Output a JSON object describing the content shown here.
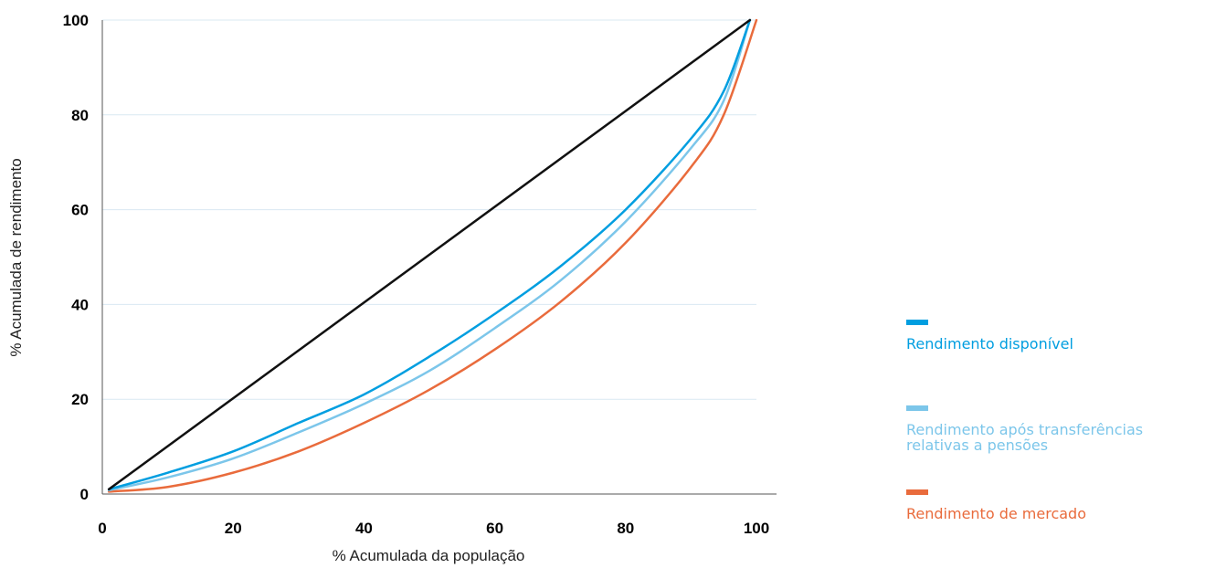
{
  "chart_data": {
    "type": "line",
    "title": "",
    "xlabel": "% Acumulada da população",
    "ylabel": "% Acumulada de rendimento",
    "xlim": [
      0,
      100
    ],
    "ylim": [
      0,
      100
    ],
    "x_ticks": [
      "0",
      "20",
      "40",
      "60",
      "80",
      "100"
    ],
    "y_ticks": [
      "0",
      "20",
      "40",
      "60",
      "80",
      "100"
    ],
    "grid": "horizontal",
    "legend_position": "right",
    "series": [
      {
        "name": "Rendimento disponível",
        "color": "#009ee0",
        "x": [
          1,
          10,
          20,
          30,
          40,
          50,
          60,
          70,
          80,
          90,
          95,
          99
        ],
        "y": [
          1,
          4.5,
          9,
          15,
          21,
          29,
          38,
          48,
          60,
          75,
          85,
          100
        ]
      },
      {
        "name": "Rendimento após transferências\nrelativas a pensões",
        "color": "#7cc6ea",
        "x": [
          1,
          10,
          20,
          30,
          40,
          50,
          60,
          70,
          80,
          90,
          95,
          99
        ],
        "y": [
          0.8,
          3.5,
          7.5,
          13,
          19,
          26,
          35,
          45,
          57.5,
          73,
          83,
          100
        ]
      },
      {
        "name": "Rendimento de mercado",
        "color": "#e96b3c",
        "x": [
          1,
          10,
          20,
          30,
          40,
          50,
          60,
          70,
          80,
          90,
          95,
          100
        ],
        "y": [
          0.5,
          1.5,
          4.5,
          9,
          15,
          22,
          30.5,
          40.5,
          53,
          69,
          80,
          100
        ]
      },
      {
        "name": "",
        "color": "#111111",
        "x": [
          1,
          99
        ],
        "y": [
          1,
          100
        ]
      }
    ]
  }
}
